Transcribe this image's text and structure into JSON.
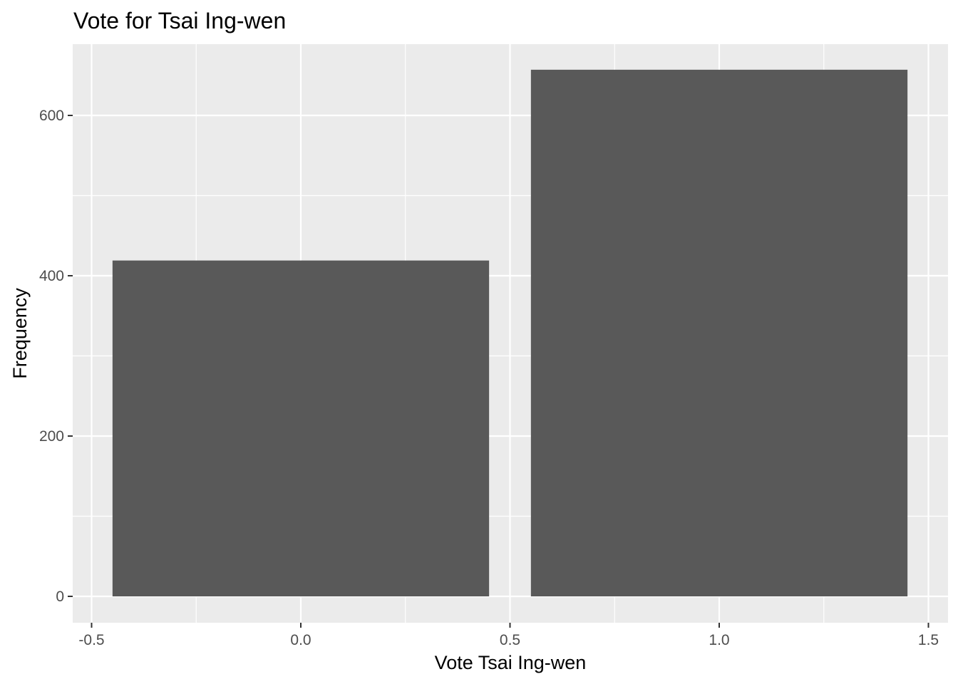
{
  "chart_data": {
    "type": "bar",
    "title": "Vote for Tsai Ing-wen",
    "xlabel": "Vote Tsai Ing-wen",
    "ylabel": "Frequency",
    "x": [
      0,
      1
    ],
    "values": [
      419,
      657
    ],
    "bar_width": 0.9,
    "xlim": [
      -0.5,
      1.5
    ],
    "ylim": [
      0,
      657
    ],
    "x_ticks": [
      -0.5,
      0,
      0.5,
      1,
      1.5
    ],
    "x_tick_labels": [
      "-0.5",
      "0.0",
      "0.5",
      "1.0",
      "1.5"
    ],
    "y_ticks": [
      0,
      200,
      400,
      600
    ],
    "y_tick_labels": [
      "0",
      "200",
      "400",
      "600"
    ],
    "grid": true,
    "legend": "none",
    "colors": {
      "panel_background": "#ebebeb",
      "grid_line": "#ffffff",
      "bar_fill": "#595959",
      "tick_mark": "#333333",
      "tick_label": "#4d4d4d",
      "text": "#000000"
    }
  }
}
